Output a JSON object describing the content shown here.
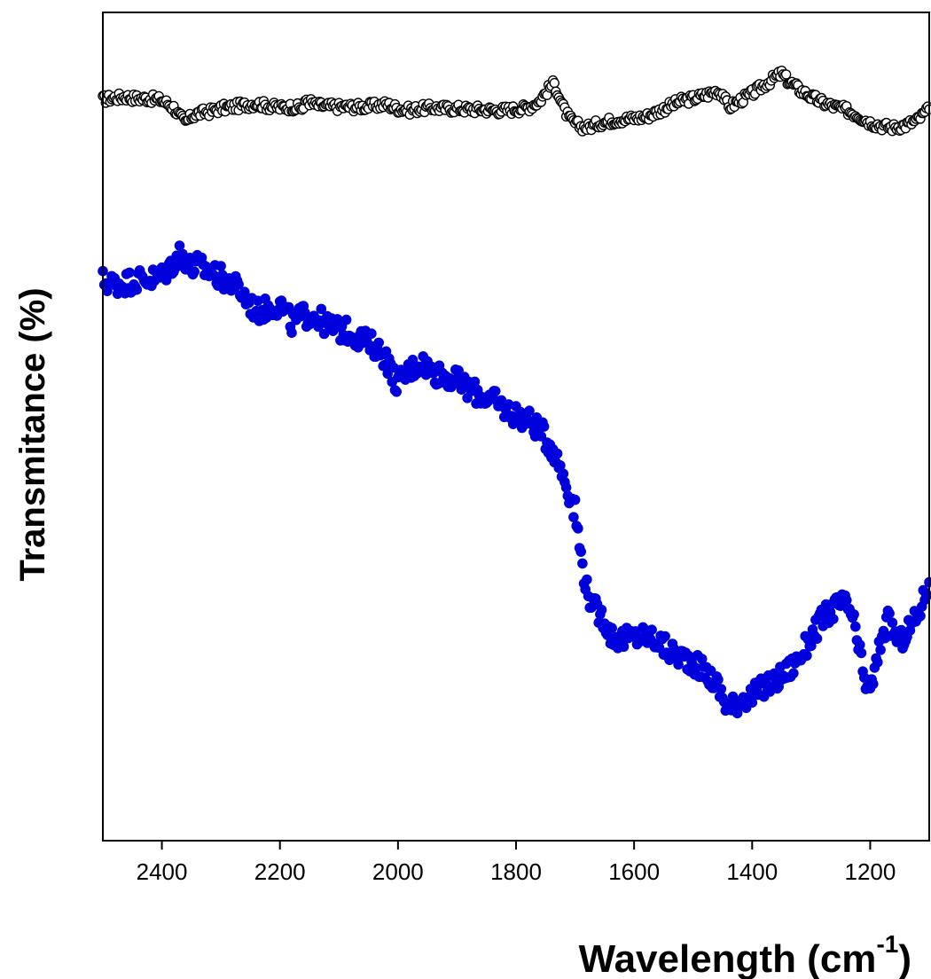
{
  "chart_data": {
    "type": "scatter",
    "title": "",
    "xlabel": "Wavelength (cm",
    "xlabel_superscript": "-1",
    "xlabel_suffix": ")",
    "ylabel": "Transmitance (%)",
    "xlim": [
      2500,
      1100
    ],
    "x_reversed": true,
    "ylim": [
      0,
      100
    ],
    "y_ticks_shown": false,
    "grid": false,
    "legend": "none",
    "x_ticks": [
      2400,
      2200,
      2000,
      1800,
      1600,
      1400,
      1200
    ],
    "series": [
      {
        "marker": "open-circle",
        "color": "#000000",
        "x": [
          2500,
          2480,
          2460,
          2440,
          2420,
          2400,
          2380,
          2370,
          2360,
          2350,
          2340,
          2320,
          2300,
          2280,
          2260,
          2240,
          2220,
          2200,
          2180,
          2160,
          2155,
          2140,
          2120,
          2100,
          2080,
          2060,
          2040,
          2020,
          2000,
          1980,
          1960,
          1940,
          1920,
          1900,
          1880,
          1860,
          1840,
          1820,
          1800,
          1780,
          1760,
          1750,
          1740,
          1735,
          1730,
          1720,
          1710,
          1700,
          1690,
          1680,
          1670,
          1660,
          1640,
          1620,
          1600,
          1580,
          1560,
          1540,
          1520,
          1500,
          1480,
          1460,
          1450,
          1440,
          1420,
          1400,
          1380,
          1360,
          1350,
          1340,
          1320,
          1300,
          1280,
          1260,
          1240,
          1220,
          1200,
          1180,
          1160,
          1140,
          1120,
          1100
        ],
        "y": [
          89.5,
          89.7,
          89.8,
          89.6,
          89.6,
          89.4,
          88.5,
          87.5,
          86.7,
          87.4,
          87.8,
          88.0,
          88.4,
          88.6,
          88.8,
          89.0,
          88.7,
          88.5,
          88.6,
          88.4,
          89.5,
          88.8,
          88.7,
          88.6,
          88.6,
          88.6,
          88.7,
          88.9,
          88.4,
          88.2,
          88.4,
          88.5,
          88.4,
          88.4,
          88.3,
          88.3,
          88.2,
          88.2,
          88.3,
          88.5,
          89.3,
          90.3,
          91.2,
          91.4,
          90.5,
          88.5,
          87.2,
          86.6,
          86.2,
          86.1,
          86.3,
          86.6,
          86.9,
          87.1,
          87.2,
          87.4,
          88.0,
          88.7,
          89.3,
          89.6,
          90.0,
          90.5,
          90.2,
          88.5,
          89.4,
          90.2,
          91.2,
          92.2,
          92.6,
          91.8,
          90.7,
          89.8,
          89.1,
          88.6,
          88.2,
          87.5,
          86.7,
          86.3,
          86.1,
          86.4,
          87.0,
          88.3
        ]
      },
      {
        "marker": "filled-circle",
        "color": "#0000dd",
        "x": [
          2500,
          2480,
          2460,
          2440,
          2420,
          2400,
          2380,
          2370,
          2360,
          2350,
          2340,
          2320,
          2300,
          2280,
          2260,
          2240,
          2220,
          2200,
          2180,
          2160,
          2140,
          2120,
          2100,
          2080,
          2060,
          2040,
          2020,
          2010,
          2000,
          1980,
          1960,
          1940,
          1920,
          1900,
          1880,
          1860,
          1840,
          1820,
          1800,
          1780,
          1760,
          1740,
          1720,
          1700,
          1690,
          1680,
          1670,
          1660,
          1650,
          1640,
          1620,
          1600,
          1580,
          1560,
          1540,
          1520,
          1500,
          1480,
          1460,
          1440,
          1420,
          1400,
          1380,
          1360,
          1340,
          1320,
          1300,
          1280,
          1260,
          1250,
          1240,
          1230,
          1220,
          1210,
          1200,
          1190,
          1180,
          1170,
          1160,
          1150,
          1140,
          1120,
          1100
        ],
        "y": [
          67.6,
          67.2,
          67.4,
          67.8,
          67.8,
          68.2,
          69.8,
          71.0,
          70.2,
          69.0,
          69.5,
          68.7,
          68.0,
          67.3,
          65.7,
          63.8,
          64.3,
          64.8,
          62.5,
          63.4,
          63.4,
          62.2,
          61.7,
          61.4,
          60.5,
          59.7,
          58.3,
          56.2,
          55.2,
          56.8,
          57.8,
          56.5,
          56.2,
          55.5,
          54.5,
          53.8,
          53.2,
          52.2,
          51.4,
          50.8,
          49.6,
          47.6,
          44.2,
          39.9,
          34.4,
          30.4,
          28.3,
          27.4,
          26.8,
          24.8,
          24.3,
          24.5,
          24.8,
          24.1,
          22.8,
          22.2,
          21.6,
          20.3,
          18.9,
          15.8,
          17.1,
          17.5,
          18.5,
          19.3,
          20.5,
          22.0,
          24.6,
          26.8,
          28.2,
          28.5,
          28.6,
          27.0,
          23.2,
          19.6,
          18.0,
          21.0,
          25.0,
          26.4,
          25.2,
          23.8,
          25.0,
          27.0,
          31.2
        ]
      }
    ]
  }
}
